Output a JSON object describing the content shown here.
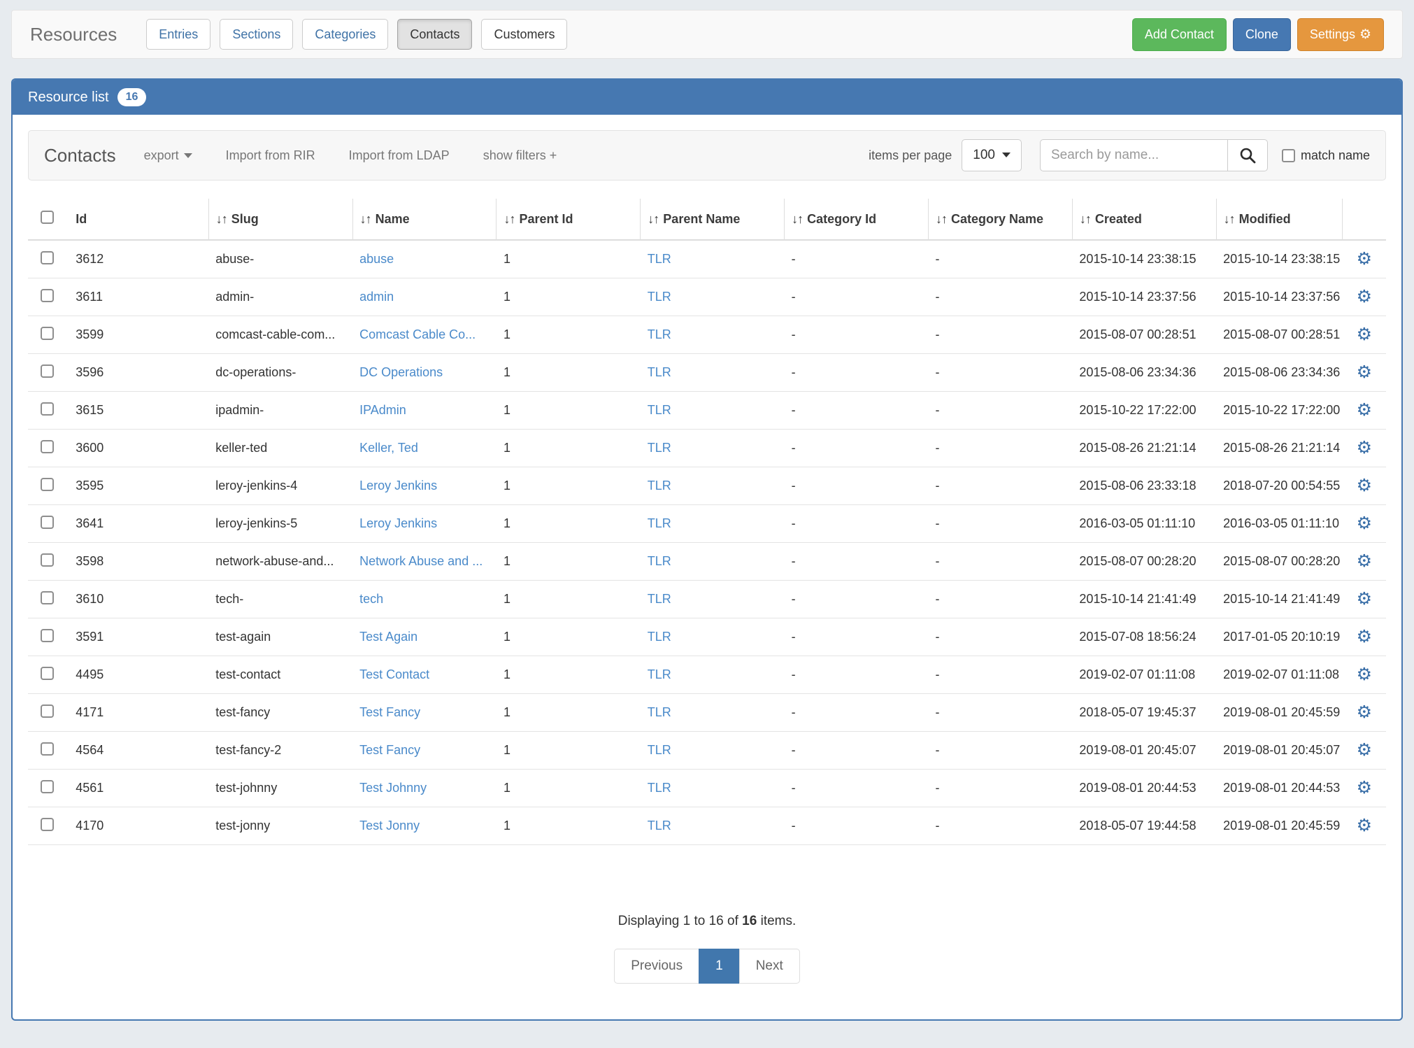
{
  "header": {
    "title": "Resources",
    "tabs": [
      {
        "label": "Entries",
        "active": false,
        "link_style": true
      },
      {
        "label": "Sections",
        "active": false,
        "link_style": true
      },
      {
        "label": "Categories",
        "active": false,
        "link_style": true
      },
      {
        "label": "Contacts",
        "active": true,
        "link_style": false
      },
      {
        "label": "Customers",
        "active": false,
        "link_style": false
      }
    ],
    "actions": {
      "add_contact": "Add Contact",
      "clone": "Clone",
      "settings": "Settings",
      "settings_gear_icon": "⚙"
    }
  },
  "panel": {
    "heading": "Resource list",
    "count_badge": "16"
  },
  "toolbar": {
    "title": "Contacts",
    "export_label": "export",
    "import_rir_label": "Import from RIR",
    "import_ldap_label": "Import from LDAP",
    "show_filters_label": "show filters +",
    "items_per_page_label": "items per page",
    "items_per_page_value": "100",
    "search_placeholder": "Search by name...",
    "match_name_label": "match name"
  },
  "table": {
    "columns": [
      {
        "label": "Id",
        "sortable": false
      },
      {
        "label": "Slug",
        "sortable": true
      },
      {
        "label": "Name",
        "sortable": true
      },
      {
        "label": "Parent Id",
        "sortable": true
      },
      {
        "label": "Parent Name",
        "sortable": true
      },
      {
        "label": "Category Id",
        "sortable": true
      },
      {
        "label": "Category Name",
        "sortable": true
      },
      {
        "label": "Created",
        "sortable": true
      },
      {
        "label": "Modified",
        "sortable": true
      }
    ],
    "sort_icon": "↓↑",
    "row_gear_icon": "⚙",
    "rows": [
      {
        "id": "3612",
        "slug": "abuse-",
        "name": "abuse",
        "parent_id": "1",
        "parent_name": "TLR",
        "category_id": "-",
        "category_name": "-",
        "created": "2015-10-14 23:38:15",
        "modified": "2015-10-14 23:38:15"
      },
      {
        "id": "3611",
        "slug": "admin-",
        "name": "admin",
        "parent_id": "1",
        "parent_name": "TLR",
        "category_id": "-",
        "category_name": "-",
        "created": "2015-10-14 23:37:56",
        "modified": "2015-10-14 23:37:56"
      },
      {
        "id": "3599",
        "slug": "comcast-cable-com...",
        "name": "Comcast Cable Co...",
        "parent_id": "1",
        "parent_name": "TLR",
        "category_id": "-",
        "category_name": "-",
        "created": "2015-08-07 00:28:51",
        "modified": "2015-08-07 00:28:51"
      },
      {
        "id": "3596",
        "slug": "dc-operations-",
        "name": "DC Operations",
        "parent_id": "1",
        "parent_name": "TLR",
        "category_id": "-",
        "category_name": "-",
        "created": "2015-08-06 23:34:36",
        "modified": "2015-08-06 23:34:36"
      },
      {
        "id": "3615",
        "slug": "ipadmin-",
        "name": "IPAdmin",
        "parent_id": "1",
        "parent_name": "TLR",
        "category_id": "-",
        "category_name": "-",
        "created": "2015-10-22 17:22:00",
        "modified": "2015-10-22 17:22:00"
      },
      {
        "id": "3600",
        "slug": "keller-ted",
        "name": "Keller, Ted",
        "parent_id": "1",
        "parent_name": "TLR",
        "category_id": "-",
        "category_name": "-",
        "created": "2015-08-26 21:21:14",
        "modified": "2015-08-26 21:21:14"
      },
      {
        "id": "3595",
        "slug": "leroy-jenkins-4",
        "name": "Leroy Jenkins",
        "parent_id": "1",
        "parent_name": "TLR",
        "category_id": "-",
        "category_name": "-",
        "created": "2015-08-06 23:33:18",
        "modified": "2018-07-20 00:54:55"
      },
      {
        "id": "3641",
        "slug": "leroy-jenkins-5",
        "name": "Leroy Jenkins",
        "parent_id": "1",
        "parent_name": "TLR",
        "category_id": "-",
        "category_name": "-",
        "created": "2016-03-05 01:11:10",
        "modified": "2016-03-05 01:11:10"
      },
      {
        "id": "3598",
        "slug": "network-abuse-and...",
        "name": "Network Abuse and ...",
        "parent_id": "1",
        "parent_name": "TLR",
        "category_id": "-",
        "category_name": "-",
        "created": "2015-08-07 00:28:20",
        "modified": "2015-08-07 00:28:20"
      },
      {
        "id": "3610",
        "slug": "tech-",
        "name": "tech",
        "parent_id": "1",
        "parent_name": "TLR",
        "category_id": "-",
        "category_name": "-",
        "created": "2015-10-14 21:41:49",
        "modified": "2015-10-14 21:41:49"
      },
      {
        "id": "3591",
        "slug": "test-again",
        "name": "Test Again",
        "parent_id": "1",
        "parent_name": "TLR",
        "category_id": "-",
        "category_name": "-",
        "created": "2015-07-08 18:56:24",
        "modified": "2017-01-05 20:10:19"
      },
      {
        "id": "4495",
        "slug": "test-contact",
        "name": "Test Contact",
        "parent_id": "1",
        "parent_name": "TLR",
        "category_id": "-",
        "category_name": "-",
        "created": "2019-02-07 01:11:08",
        "modified": "2019-02-07 01:11:08"
      },
      {
        "id": "4171",
        "slug": "test-fancy",
        "name": "Test Fancy",
        "parent_id": "1",
        "parent_name": "TLR",
        "category_id": "-",
        "category_name": "-",
        "created": "2018-05-07 19:45:37",
        "modified": "2019-08-01 20:45:59"
      },
      {
        "id": "4564",
        "slug": "test-fancy-2",
        "name": "Test Fancy",
        "parent_id": "1",
        "parent_name": "TLR",
        "category_id": "-",
        "category_name": "-",
        "created": "2019-08-01 20:45:07",
        "modified": "2019-08-01 20:45:07"
      },
      {
        "id": "4561",
        "slug": "test-johnny",
        "name": "Test Johnny",
        "parent_id": "1",
        "parent_name": "TLR",
        "category_id": "-",
        "category_name": "-",
        "created": "2019-08-01 20:44:53",
        "modified": "2019-08-01 20:44:53"
      },
      {
        "id": "4170",
        "slug": "test-jonny",
        "name": "Test Jonny",
        "parent_id": "1",
        "parent_name": "TLR",
        "category_id": "-",
        "category_name": "-",
        "created": "2018-05-07 19:44:58",
        "modified": "2019-08-01 20:45:59"
      }
    ]
  },
  "footer": {
    "summary_prefix": "Displaying 1 to 16 of ",
    "summary_count": "16",
    "summary_suffix": " items.",
    "pagination": {
      "previous": "Previous",
      "current": "1",
      "next": "Next"
    }
  },
  "colors": {
    "panel_blue": "#4678b1",
    "button_green": "#5cb85c",
    "button_blue": "#4678b2",
    "button_orange": "#e5973e",
    "link_blue": "#4a8aca",
    "active_page_blue": "#4177ad"
  }
}
